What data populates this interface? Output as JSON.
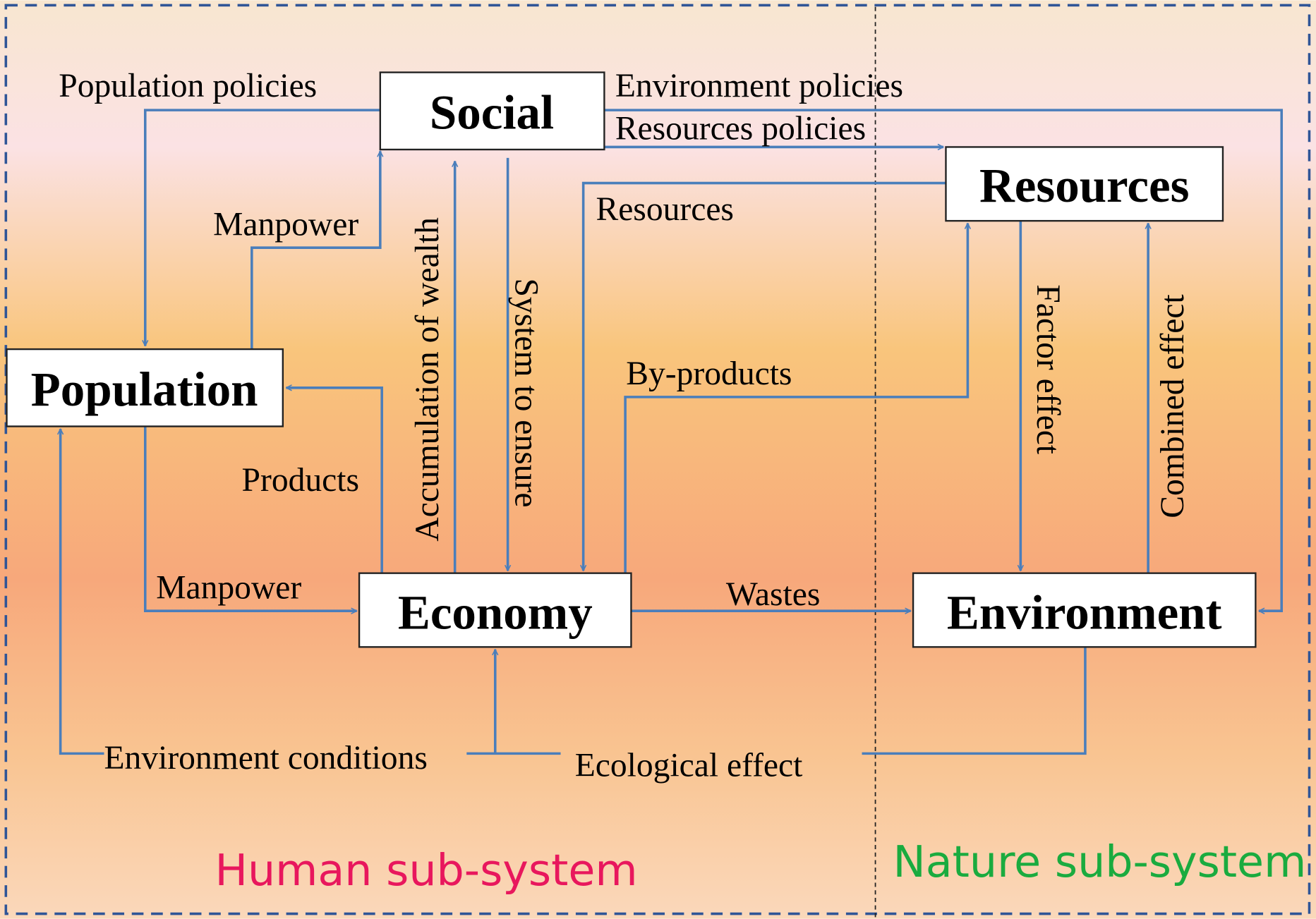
{
  "nodes": [
    {
      "label": "Social"
    },
    {
      "label": "Resources"
    },
    {
      "label": "Population"
    },
    {
      "label": "Economy"
    },
    {
      "label": "Environment"
    }
  ],
  "edges": [
    {
      "label": "Population policies"
    },
    {
      "label": "Manpower"
    },
    {
      "label": "Environment policies"
    },
    {
      "label": "Resources policies"
    },
    {
      "label": "Resources"
    },
    {
      "label": "Accumulation of wealth"
    },
    {
      "label": "System to ensure"
    },
    {
      "label": "Products"
    },
    {
      "label": "Manpower"
    },
    {
      "label": "By-products"
    },
    {
      "label": "Factor effect"
    },
    {
      "label": "Combined effect"
    },
    {
      "label": "Wastes"
    },
    {
      "label": "Environment conditions"
    },
    {
      "label": "Ecological effect"
    }
  ],
  "subsystems": [
    {
      "label": "Human sub-system"
    },
    {
      "label": "Nature sub-system"
    }
  ]
}
